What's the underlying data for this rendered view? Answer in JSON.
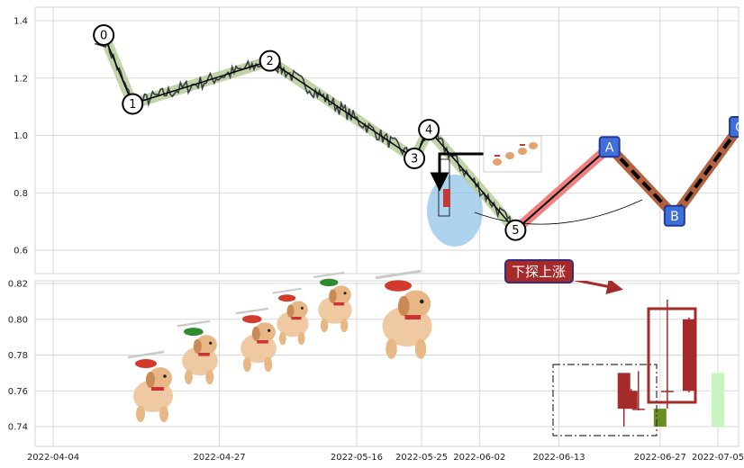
{
  "chart_data": [
    {
      "type": "line",
      "ylim": [
        0.55,
        1.43
      ],
      "y_ticks": [
        "0.6",
        "0.8",
        "1.0",
        "1.2",
        "1.4"
      ],
      "x_ticks": [
        "2022-04-04",
        "2022-04-27",
        "2022-05-16",
        "2022-05-25",
        "2022-06-02",
        "2022-06-13",
        "2022-06-27",
        "2022-07-05"
      ],
      "grid": true,
      "wave_points": [
        {
          "label": "0",
          "x": "2022-04-11",
          "y": 1.35
        },
        {
          "label": "1",
          "x": "2022-04-15",
          "y": 1.11
        },
        {
          "label": "2",
          "x": "2022-05-04",
          "y": 1.26
        },
        {
          "label": "3",
          "x": "2022-05-24",
          "y": 0.92
        },
        {
          "label": "4",
          "x": "2022-05-26",
          "y": 1.02
        },
        {
          "label": "5",
          "x": "2022-06-07",
          "y": 0.67
        }
      ],
      "projection_points": [
        {
          "label": "A",
          "x": "2022-06-20",
          "y": 0.96
        },
        {
          "label": "B",
          "x": "2022-06-29",
          "y": 0.72
        },
        {
          "label": "C",
          "x": "2022-07-08",
          "y": 1.03
        }
      ],
      "colors": {
        "price": "#3a3d45",
        "wave_fill": "#b5cc98",
        "up_leg": "#f08080",
        "down_leg": "#b3623f",
        "point_box": "#3f6fd8",
        "point_border": "#223a9c",
        "highlight": "#8cc1e8"
      }
    },
    {
      "type": "bar",
      "ylim": [
        0.73,
        0.822
      ],
      "y_ticks": [
        "0.74",
        "0.76",
        "0.78",
        "0.80",
        "0.82"
      ],
      "candles": [
        {
          "x": "2022-06-22",
          "open": 0.77,
          "high": 0.77,
          "low": 0.74,
          "close": 0.75,
          "color": "#a52a2a"
        },
        {
          "x": "2022-06-23",
          "open": 0.76,
          "high": 0.761,
          "low": 0.75,
          "close": 0.75,
          "color": "#a52a2a"
        },
        {
          "x": "2022-06-24",
          "open": 0.75,
          "high": 0.771,
          "low": 0.749,
          "close": 0.75,
          "color": "#a52a2a"
        },
        {
          "x": "2022-06-27",
          "open": 0.75,
          "high": 0.75,
          "low": 0.74,
          "close": 0.74,
          "color": "#6b8e23"
        },
        {
          "x": "2022-06-28",
          "open": 0.76,
          "high": 0.811,
          "low": 0.75,
          "close": 0.76,
          "color": "#a52a2a"
        },
        {
          "x": "2022-07-01",
          "open": 0.76,
          "high": 0.801,
          "low": 0.759,
          "close": 0.8,
          "color": "#a52a2a"
        },
        {
          "x": "2022-07-05",
          "open": 0.74,
          "high": 0.77,
          "low": 0.74,
          "close": 0.77,
          "color": "#c7f5c0"
        }
      ],
      "annotation": "下探上涨",
      "colors": {
        "annotation_bg": "#a52a2a",
        "annotation_border": "#3b2c7a",
        "frame": "#a52a2a"
      }
    }
  ]
}
